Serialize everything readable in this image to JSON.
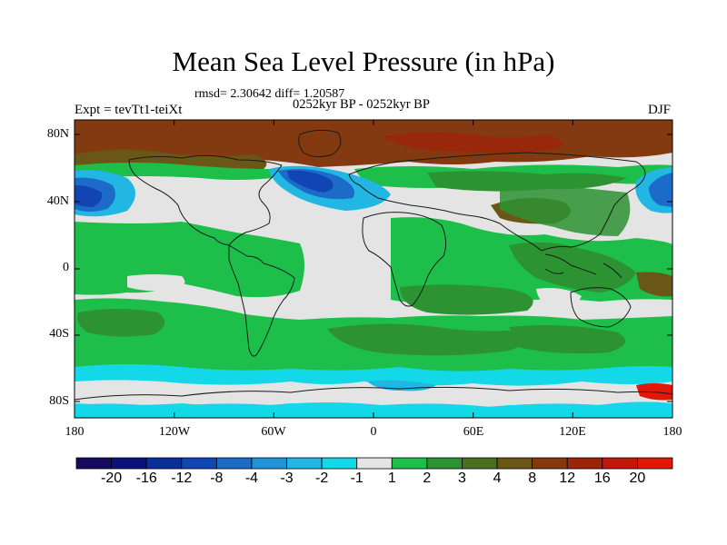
{
  "title": "Mean Sea Level Pressure (in hPa)",
  "stats": "rmsd= 2.30642 diff= 1.20587",
  "period": "0252kyr BP - 0252kyr BP",
  "experiment": "Expt = tevTt1-teiXt",
  "season": "DJF",
  "axes": {
    "y_ticks": [
      "80N",
      "40N",
      "0",
      "40S",
      "80S"
    ],
    "x_ticks": [
      "180",
      "120W",
      "60W",
      "0",
      "60E",
      "120E",
      "180"
    ]
  },
  "colorbar": {
    "labels": [
      "-20",
      "-16",
      "-12",
      "-8",
      "-4",
      "-3",
      "-2",
      "-1",
      "1",
      "2",
      "3",
      "4",
      "8",
      "12",
      "16",
      "20"
    ],
    "colors": [
      "#140a5e",
      "#0a127a",
      "#0b2f98",
      "#1145b4",
      "#1c6bc8",
      "#1f93d6",
      "#22b6e2",
      "#12d8e8",
      "#e4e4e4",
      "#1dbf4a",
      "#2d9232",
      "#4a6e22",
      "#6a5616",
      "#843a10",
      "#9c2408",
      "#c01808",
      "#e01808"
    ]
  },
  "palette": {
    "ocean_neutral": "#e4e4e4",
    "coast": "#1a1a1a",
    "frame": "#000000"
  }
}
